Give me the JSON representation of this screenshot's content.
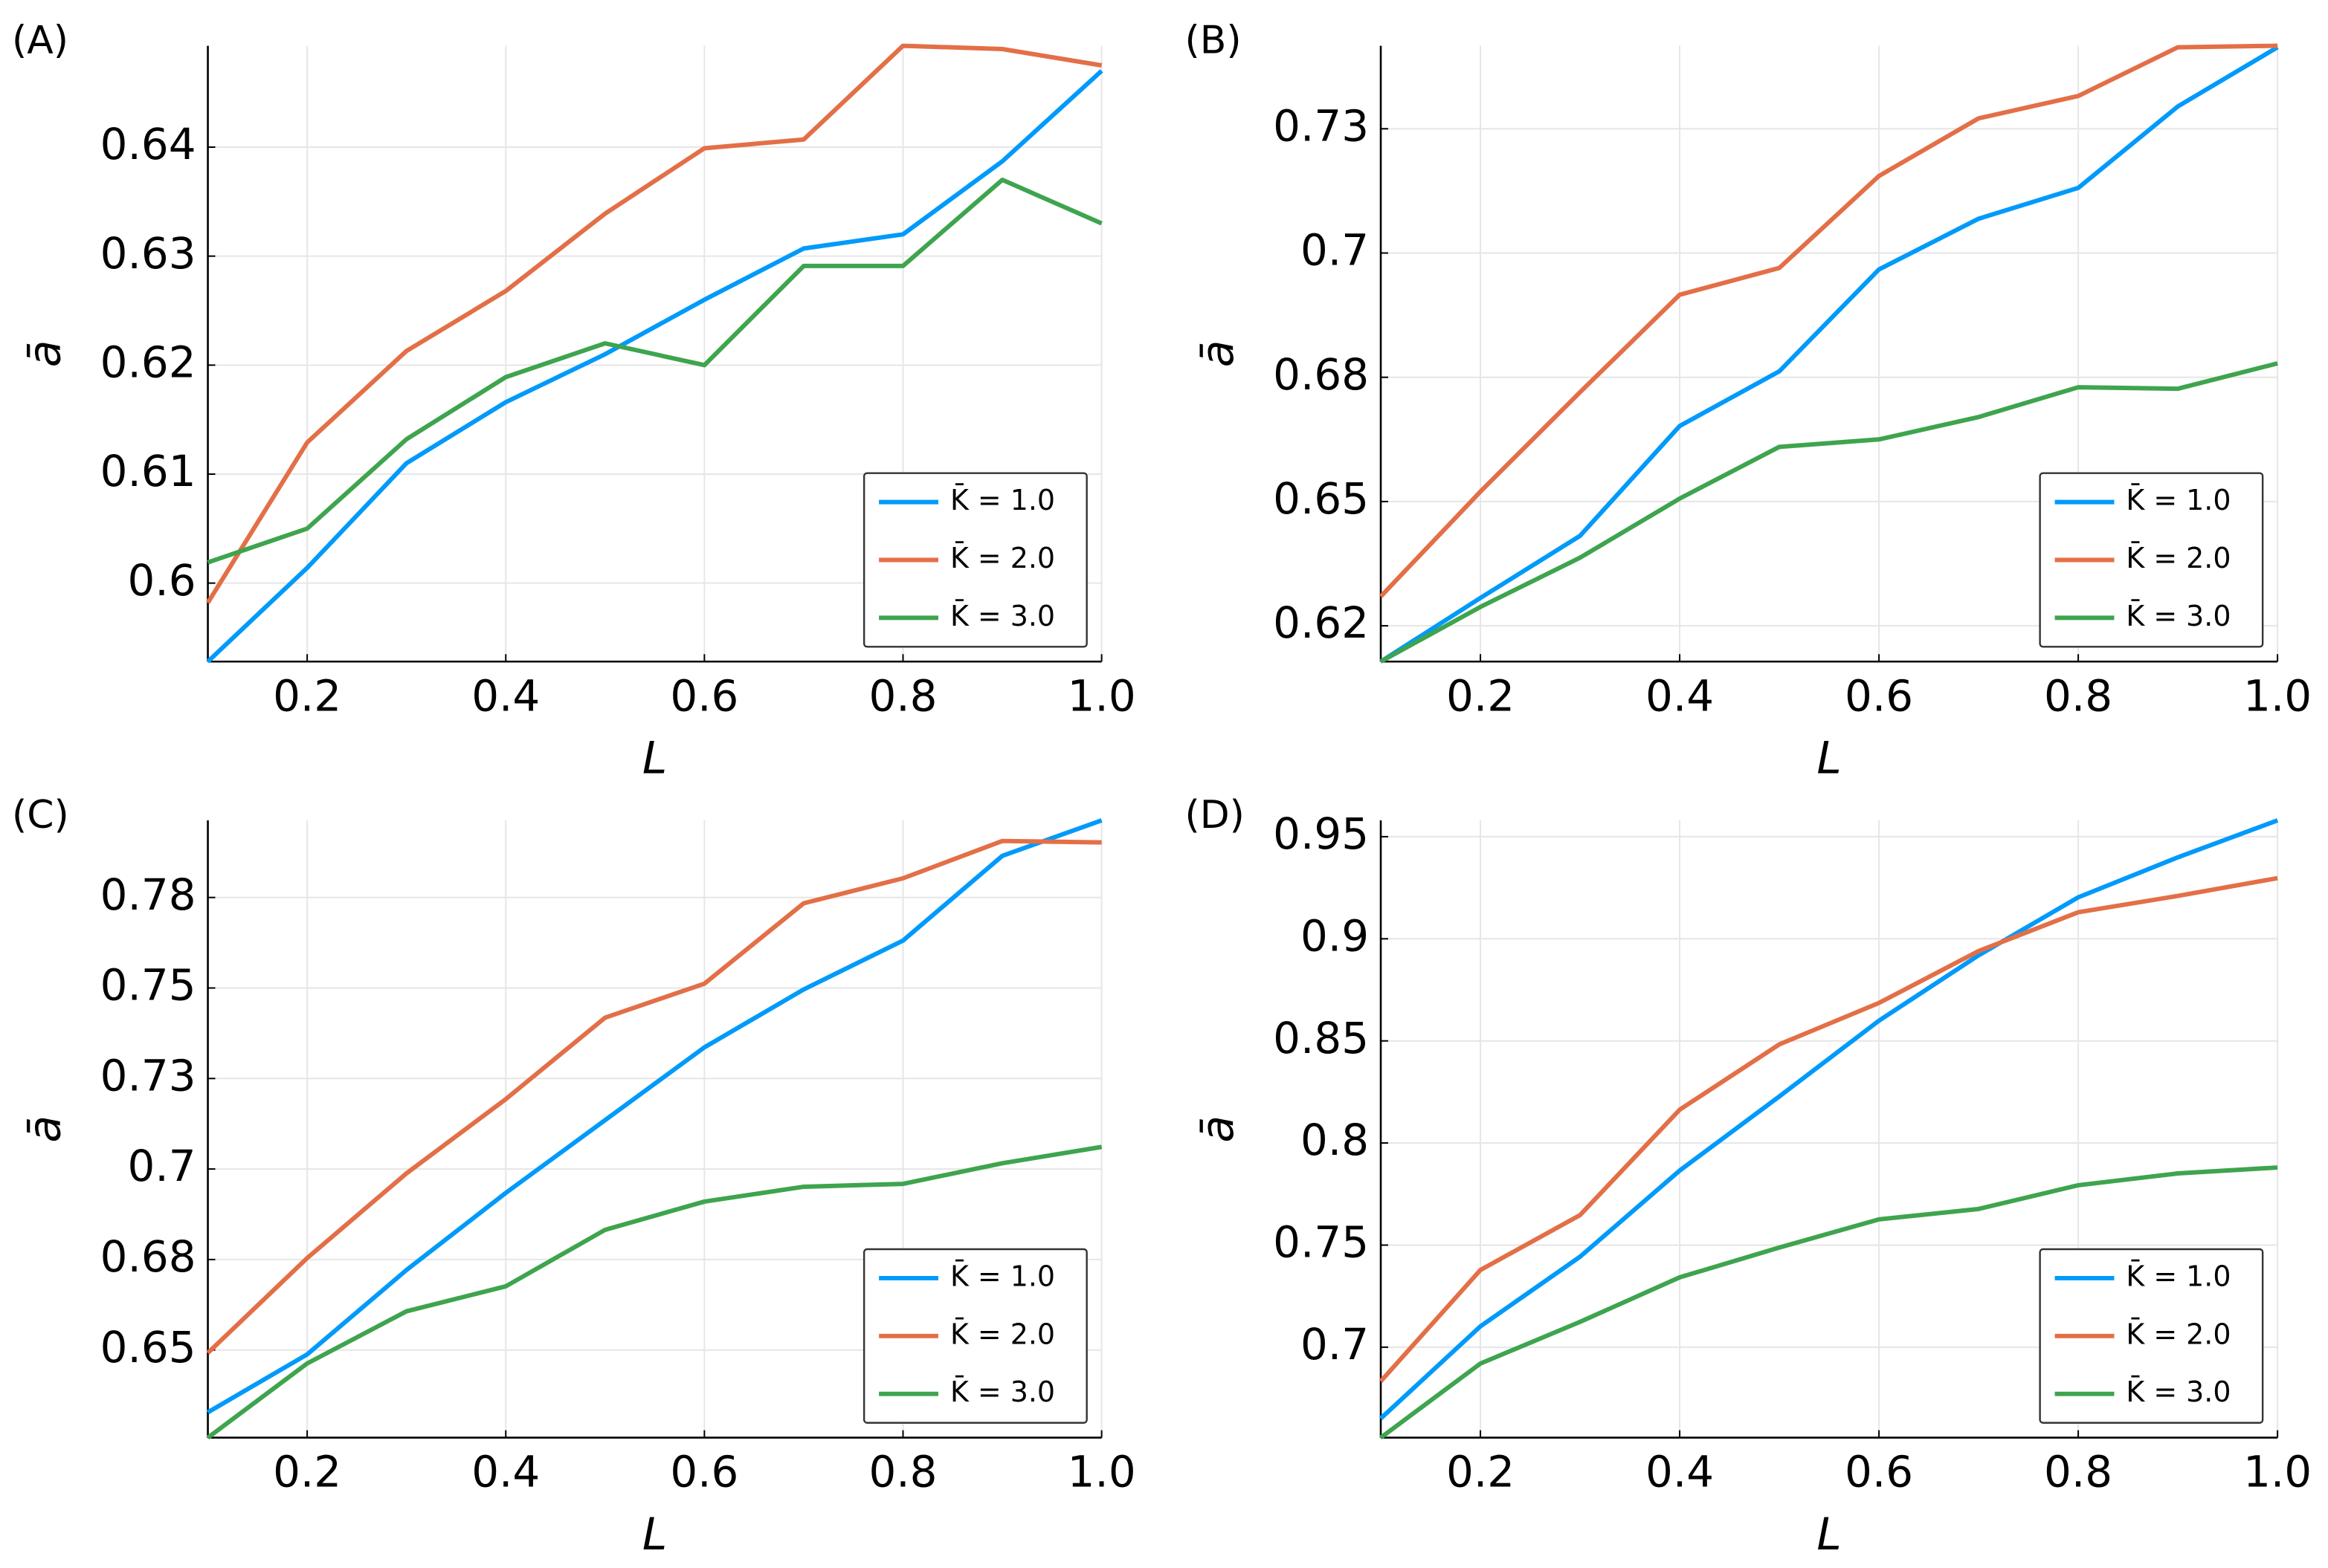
{
  "chart_data": [
    {
      "type": "line",
      "label": "(A)",
      "x_label": "L",
      "y_label": "ā",
      "grid": true,
      "legend": "lower right",
      "x": [
        0.1,
        0.2,
        0.3,
        0.4,
        0.5,
        0.6,
        0.7,
        0.8,
        0.9,
        1.0
      ],
      "xlim": [
        0.1,
        1.0
      ],
      "xticks": [
        0.2,
        0.4,
        0.6,
        0.8,
        {
          "value": 1.0,
          "label": "1.0"
        }
      ],
      "ylim": [
        0.5928,
        0.6493
      ],
      "yticks": [
        0.6,
        0.61,
        0.62,
        0.63,
        0.64
      ],
      "series": [
        {
          "name": "K̄ = 1.0",
          "color": "#009AFA",
          "values": [
            0.5928,
            0.6014,
            0.611,
            0.6166,
            0.621,
            0.626,
            0.6307,
            0.632,
            0.6387,
            0.647
          ]
        },
        {
          "name": "K̄ = 2.0",
          "color": "#E36F47",
          "values": [
            0.5982,
            0.6129,
            0.6213,
            0.6268,
            0.6339,
            0.6399,
            0.6407,
            0.6493,
            0.649,
            0.6475
          ]
        },
        {
          "name": "K̄ = 3.0",
          "color": "#3EA44E",
          "values": [
            0.6019,
            0.605,
            0.6132,
            0.6189,
            0.622,
            0.62,
            0.6291,
            0.6291,
            0.637,
            0.633
          ]
        }
      ]
    },
    {
      "type": "line",
      "label": "(B)",
      "x_label": "L",
      "y_label": "ā",
      "grid": true,
      "legend": "lower right",
      "x": [
        0.1,
        0.2,
        0.3,
        0.4,
        0.5,
        0.6,
        0.7,
        0.8,
        0.9,
        1.0
      ],
      "xlim": [
        0.1,
        1.0
      ],
      "xticks": [
        0.2,
        0.4,
        0.6,
        0.8,
        {
          "value": 1.0,
          "label": "1.0"
        }
      ],
      "ylim": [
        0.6178,
        0.7417
      ],
      "yticks": [
        {
          "value": 0.625,
          "label": "0.62"
        },
        0.65,
        {
          "value": 0.675,
          "label": "0.68"
        },
        0.7,
        {
          "value": 0.725,
          "label": "0.73"
        }
      ],
      "series": [
        {
          "name": "K̄ = 1.0",
          "color": "#009AFA",
          "values": [
            0.6178,
            0.6306,
            0.6431,
            0.6652,
            0.6762,
            0.6967,
            0.7069,
            0.7131,
            0.7295,
            0.7414
          ]
        },
        {
          "name": "K̄ = 2.0",
          "color": "#E36F47",
          "values": [
            0.6309,
            0.652,
            0.672,
            0.6916,
            0.697,
            0.7155,
            0.7271,
            0.7316,
            0.7414,
            0.7417
          ]
        },
        {
          "name": "K̄ = 3.0",
          "color": "#3EA44E",
          "values": [
            0.6178,
            0.6288,
            0.6387,
            0.6506,
            0.661,
            0.6625,
            0.667,
            0.673,
            0.6727,
            0.6778
          ]
        }
      ]
    },
    {
      "type": "line",
      "label": "(C)",
      "x_label": "L",
      "y_label": "ā",
      "grid": true,
      "legend": "lower right",
      "x": [
        0.1,
        0.2,
        0.3,
        0.4,
        0.5,
        0.6,
        0.7,
        0.8,
        0.9,
        1.0
      ],
      "xlim": [
        0.1,
        1.0
      ],
      "xticks": [
        0.2,
        0.4,
        0.6,
        0.8,
        {
          "value": 1.0,
          "label": "1.0"
        }
      ],
      "ylim": [
        0.6258,
        0.7963
      ],
      "yticks": [
        0.65,
        {
          "value": 0.675,
          "label": "0.68"
        },
        0.7,
        {
          "value": 0.725,
          "label": "0.73"
        },
        0.75,
        {
          "value": 0.775,
          "label": "0.78"
        }
      ],
      "series": [
        {
          "name": "K̄ = 1.0",
          "color": "#009AFA",
          "values": [
            0.6328,
            0.6488,
            0.6721,
            0.6934,
            0.7135,
            0.7336,
            0.7496,
            0.7631,
            0.7865,
            0.7963
          ]
        },
        {
          "name": "K̄ = 2.0",
          "color": "#E36F47",
          "values": [
            0.6492,
            0.6754,
            0.6988,
            0.7193,
            0.7418,
            0.7512,
            0.7734,
            0.7803,
            0.7906,
            0.7902
          ]
        },
        {
          "name": "K̄ = 3.0",
          "color": "#3EA44E",
          "values": [
            0.6258,
            0.6463,
            0.6607,
            0.6676,
            0.6832,
            0.691,
            0.6951,
            0.6959,
            0.7016,
            0.7061
          ]
        }
      ]
    },
    {
      "type": "line",
      "label": "(D)",
      "x_label": "L",
      "y_label": "ā",
      "grid": true,
      "legend": "lower right",
      "x": [
        0.1,
        0.2,
        0.3,
        0.4,
        0.5,
        0.6,
        0.7,
        0.8,
        0.9,
        1.0
      ],
      "xlim": [
        0.1,
        1.0
      ],
      "xticks": [
        0.2,
        0.4,
        0.6,
        0.8,
        {
          "value": 1.0,
          "label": "1.0"
        }
      ],
      "ylim": [
        0.6557,
        0.958
      ],
      "yticks": [
        0.7,
        0.75,
        0.8,
        0.85,
        0.9,
        0.95
      ],
      "series": [
        {
          "name": "K̄ = 1.0",
          "color": "#009AFA",
          "values": [
            0.6651,
            0.7102,
            0.7443,
            0.7865,
            0.8228,
            0.8599,
            0.8919,
            0.9203,
            0.9399,
            0.958
          ]
        },
        {
          "name": "K̄ = 2.0",
          "color": "#E36F47",
          "values": [
            0.6833,
            0.7378,
            0.7647,
            0.8163,
            0.8483,
            0.8686,
            0.894,
            0.913,
            0.921,
            0.9297
          ]
        },
        {
          "name": "K̄ = 3.0",
          "color": "#3EA44E",
          "values": [
            0.6557,
            0.692,
            0.7124,
            0.7342,
            0.7488,
            0.7626,
            0.7677,
            0.7793,
            0.7851,
            0.788
          ]
        }
      ]
    }
  ]
}
